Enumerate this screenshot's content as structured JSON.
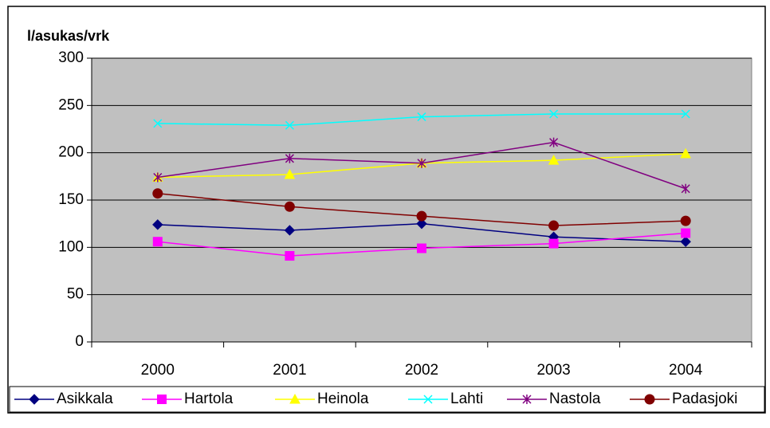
{
  "chart_data": {
    "type": "line",
    "y_label": "l/asukas/vrk",
    "categories": [
      "2000",
      "2001",
      "2002",
      "2003",
      "2004"
    ],
    "series": [
      {
        "name": "Asikkala",
        "color": "#000080",
        "marker": "diamond",
        "values": [
          124,
          118,
          125,
          111,
          106
        ]
      },
      {
        "name": "Hartola",
        "color": "#ff00ff",
        "marker": "square",
        "values": [
          106,
          91,
          99,
          104,
          115
        ]
      },
      {
        "name": "Heinola",
        "color": "#ffff00",
        "marker": "triangle",
        "values": [
          174,
          177,
          189,
          192,
          199
        ]
      },
      {
        "name": "Lahti",
        "color": "#00ffff",
        "marker": "x",
        "values": [
          231,
          229,
          238,
          241,
          241
        ]
      },
      {
        "name": "Nastola",
        "color": "#800080",
        "marker": "star",
        "values": [
          174,
          194,
          189,
          211,
          162
        ]
      },
      {
        "name": "Padasjoki",
        "color": "#800000",
        "marker": "circle",
        "values": [
          157,
          143,
          133,
          123,
          128
        ]
      }
    ],
    "ylim": [
      0,
      300
    ],
    "yticks": [
      0,
      50,
      100,
      150,
      200,
      250,
      300
    ],
    "grid": true,
    "plot_background": "#c0c0c0",
    "legend_position": "bottom"
  }
}
